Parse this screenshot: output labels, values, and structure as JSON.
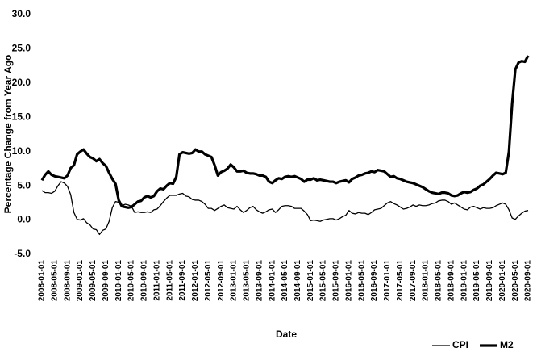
{
  "chart_data": {
    "type": "line",
    "xlabel": "Date",
    "ylabel": "Percentage Change from Year Ago",
    "categories": [
      "2008-01-01",
      null,
      null,
      null,
      "2008-05-01",
      null,
      null,
      null,
      "2008-09-01",
      null,
      null,
      null,
      "2009-01-01",
      null,
      null,
      null,
      "2009-05-01",
      null,
      null,
      null,
      "2009-09-01",
      null,
      null,
      null,
      "2010-01-01",
      null,
      null,
      null,
      "2010-05-01",
      null,
      null,
      null,
      "2010-09-01",
      null,
      null,
      null,
      "2011-01-01",
      null,
      null,
      null,
      "2011-05-01",
      null,
      null,
      null,
      "2011-09-01",
      null,
      null,
      null,
      "2012-01-01",
      null,
      null,
      null,
      "2012-05-01",
      null,
      null,
      null,
      "2012-09-01",
      null,
      null,
      null,
      "2013-01-01",
      null,
      null,
      null,
      "2013-05-01",
      null,
      null,
      null,
      "2013-09-01",
      null,
      null,
      null,
      "2014-01-01",
      null,
      null,
      null,
      "2014-05-01",
      null,
      null,
      null,
      "2014-09-01",
      null,
      null,
      null,
      "2015-01-01",
      null,
      null,
      null,
      "2015-05-01",
      null,
      null,
      null,
      "2015-09-01",
      null,
      null,
      null,
      "2016-01-01",
      null,
      null,
      null,
      "2016-05-01",
      null,
      null,
      null,
      "2016-09-01",
      null,
      null,
      null,
      "2017-01-01",
      null,
      null,
      null,
      "2017-05-01",
      null,
      null,
      null,
      "2017-09-01",
      null,
      null,
      null,
      "2018-01-01",
      null,
      null,
      null,
      "2018-05-01",
      null,
      null,
      null,
      "2018-09-01",
      null,
      null,
      null,
      "2019-01-01",
      null,
      null,
      null,
      "2019-05-01",
      null,
      null,
      null,
      "2019-09-01",
      null,
      null,
      null,
      "2020-01-01",
      null,
      null,
      null,
      "2020-05-01",
      null,
      null,
      null,
      "2020-09-01"
    ],
    "series": [
      {
        "name": "CPI",
        "color": "#000000",
        "width": 1.3,
        "values": [
          4.3,
          4.0,
          4.0,
          3.9,
          4.2,
          5.0,
          5.6,
          5.4,
          4.9,
          3.7,
          1.1,
          0.1,
          0.0,
          0.2,
          -0.4,
          -0.7,
          -1.3,
          -1.4,
          -2.1,
          -1.5,
          -1.3,
          -0.2,
          1.8,
          2.7,
          2.6,
          2.1,
          2.3,
          2.2,
          2.0,
          1.1,
          1.2,
          1.1,
          1.1,
          1.2,
          1.1,
          1.5,
          1.6,
          2.1,
          2.7,
          3.2,
          3.6,
          3.6,
          3.6,
          3.8,
          3.9,
          3.5,
          3.4,
          3.0,
          2.9,
          2.9,
          2.7,
          2.3,
          1.7,
          1.7,
          1.4,
          1.7,
          2.0,
          2.2,
          1.8,
          1.7,
          1.6,
          2.0,
          1.5,
          1.1,
          1.4,
          1.8,
          2.0,
          1.5,
          1.2,
          1.0,
          1.2,
          1.5,
          1.6,
          1.1,
          1.5,
          2.0,
          2.1,
          2.1,
          2.0,
          1.7,
          1.7,
          1.7,
          1.3,
          0.8,
          -0.1,
          0.0,
          -0.1,
          -0.2,
          0.0,
          0.1,
          0.2,
          0.2,
          0.0,
          0.2,
          0.5,
          0.7,
          1.4,
          1.0,
          0.9,
          1.1,
          1.0,
          1.0,
          0.8,
          1.1,
          1.5,
          1.6,
          1.7,
          2.1,
          2.5,
          2.7,
          2.4,
          2.2,
          1.9,
          1.6,
          1.7,
          1.9,
          2.2,
          2.0,
          2.2,
          2.1,
          2.1,
          2.2,
          2.4,
          2.5,
          2.8,
          2.9,
          2.9,
          2.7,
          2.3,
          2.5,
          2.2,
          1.9,
          1.6,
          1.5,
          1.9,
          2.0,
          1.8,
          1.6,
          1.8,
          1.7,
          1.7,
          1.8,
          2.1,
          2.3,
          2.5,
          2.3,
          1.5,
          0.3,
          0.1,
          0.6,
          1.0,
          1.3,
          1.4
        ]
      },
      {
        "name": "M2",
        "color": "#000000",
        "width": 3.2,
        "values": [
          5.8,
          6.6,
          7.1,
          6.6,
          6.4,
          6.3,
          6.2,
          6.1,
          6.5,
          7.6,
          8.0,
          9.6,
          10.0,
          10.3,
          9.7,
          9.2,
          9.0,
          8.6,
          8.9,
          8.3,
          7.9,
          6.9,
          6.0,
          5.3,
          2.9,
          2.0,
          1.9,
          1.8,
          1.9,
          2.3,
          2.7,
          2.8,
          3.3,
          3.5,
          3.3,
          3.5,
          4.2,
          4.6,
          4.5,
          5.0,
          5.4,
          5.3,
          6.3,
          9.6,
          9.9,
          9.8,
          9.7,
          9.8,
          10.3,
          10.0,
          10.0,
          9.6,
          9.4,
          9.2,
          8.0,
          6.5,
          7.0,
          7.2,
          7.5,
          8.1,
          7.7,
          7.1,
          7.1,
          7.2,
          6.9,
          6.8,
          6.8,
          6.7,
          6.5,
          6.5,
          6.3,
          5.6,
          5.4,
          5.8,
          6.1,
          6.0,
          6.3,
          6.4,
          6.3,
          6.4,
          6.2,
          6.0,
          5.6,
          5.9,
          5.9,
          6.1,
          5.8,
          5.9,
          5.8,
          5.7,
          5.6,
          5.6,
          5.4,
          5.6,
          5.7,
          5.8,
          5.5,
          6.0,
          6.2,
          6.5,
          6.6,
          6.8,
          6.9,
          7.1,
          7.0,
          7.3,
          7.2,
          7.1,
          6.7,
          6.3,
          6.4,
          6.1,
          6.0,
          5.8,
          5.6,
          5.5,
          5.4,
          5.2,
          5.0,
          4.8,
          4.5,
          4.2,
          4.0,
          3.9,
          3.8,
          4.0,
          4.0,
          3.9,
          3.6,
          3.5,
          3.6,
          3.9,
          4.1,
          4.0,
          4.1,
          4.4,
          4.6,
          5.0,
          5.2,
          5.6,
          6.0,
          6.5,
          6.9,
          6.8,
          6.7,
          6.9,
          10.0,
          17.0,
          22.0,
          23.0,
          23.2,
          23.1,
          24.0
        ]
      }
    ],
    "ylim": [
      -5,
      30
    ],
    "yticks": [
      {
        "value": -5,
        "label": "-5.0"
      },
      {
        "value": 0,
        "label": "0.0"
      },
      {
        "value": 5,
        "label": "5.0"
      },
      {
        "value": 10,
        "label": "10.0"
      },
      {
        "value": 15,
        "label": "15.0"
      },
      {
        "value": 20,
        "label": "20.0"
      },
      {
        "value": 25,
        "label": "25.0"
      },
      {
        "value": 30,
        "label": "30.0"
      }
    ],
    "grid": false,
    "legend": "bottom-right"
  }
}
